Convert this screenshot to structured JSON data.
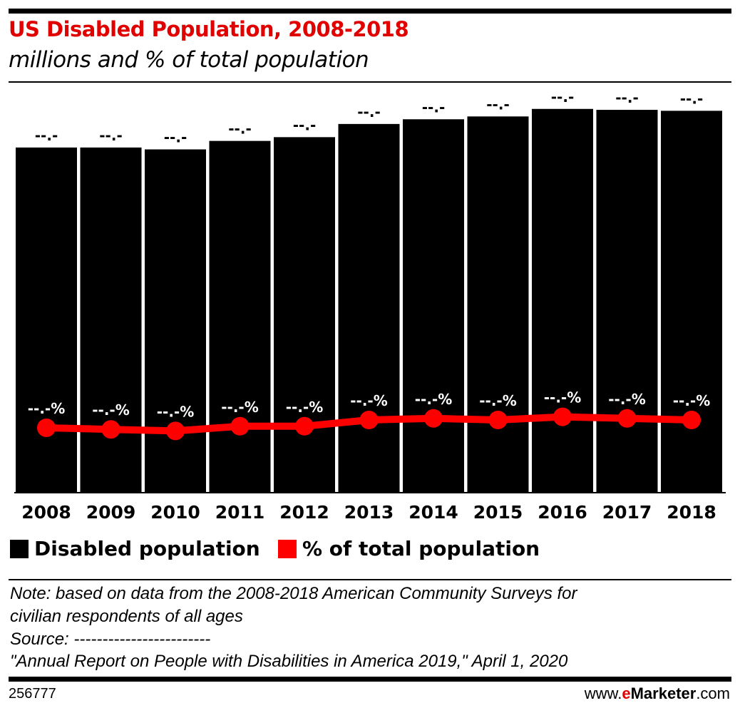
{
  "chart_data": {
    "type": "bar",
    "title": "US Disabled Population, 2008-2018",
    "subtitle": "millions and % of total population",
    "categories": [
      "2008",
      "2009",
      "2010",
      "2011",
      "2012",
      "2013",
      "2014",
      "2015",
      "2016",
      "2017",
      "2018"
    ],
    "series": [
      {
        "name": "Disabled population",
        "type": "bar",
        "color": "#000000",
        "values": [
          36.6,
          36.6,
          36.4,
          37.3,
          37.7,
          39.1,
          39.6,
          39.9,
          40.7,
          40.6,
          40.5
        ],
        "labels": [
          "--.-",
          "--.-",
          "--.-",
          "--.-",
          "--.-",
          "--.-",
          "--.-",
          "--.-",
          "--.-",
          "--.-",
          "--.-"
        ]
      },
      {
        "name": "% of total population",
        "type": "line",
        "color": "#ff0000",
        "values": [
          12.1,
          12.0,
          11.9,
          12.2,
          12.2,
          12.6,
          12.7,
          12.6,
          12.8,
          12.7,
          12.6
        ],
        "labels": [
          "--.-%",
          "--.-%",
          "--.-%",
          "--.-%",
          "--.-%",
          "--.-%",
          "--.-%",
          "--.-%",
          "--.-%",
          "--.-%",
          "--.-%"
        ]
      }
    ],
    "xlabel": "",
    "ylabel": "",
    "grid": false,
    "legend": "bottom-left"
  },
  "legend": [
    "Disabled population",
    "% of total population"
  ],
  "notes": {
    "line1": "Note: based on data from the 2008-2018 American Community Surveys for",
    "line2": "civilian respondents of all ages",
    "line3": "Source: ------------------------",
    "line4": "\"Annual Report on People with Disabilities in America 2019,\" April 1, 2020"
  },
  "footer": {
    "id": "256777",
    "brand_pre": "www.",
    "brand_e": "e",
    "brand_mid": "Marketer",
    "brand_post": ".com"
  }
}
